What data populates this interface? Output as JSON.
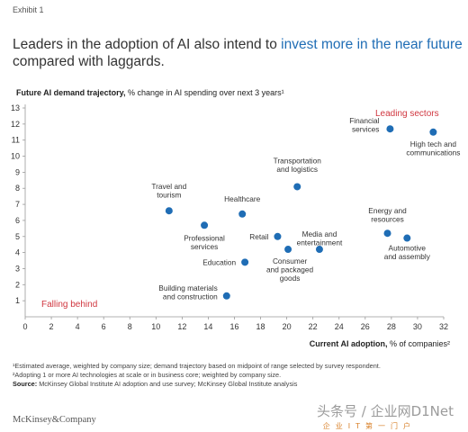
{
  "exhibit": "Exhibit 1",
  "headline": {
    "part1": "Leaders in the adoption of AI also intend to ",
    "highlight": "invest more in the near future",
    "part2": " compared with laggards."
  },
  "colors": {
    "dot": "#1f6db5",
    "accent_red": "#d0363f",
    "axis": "#999999"
  },
  "chart_data": {
    "type": "scatter",
    "ylabel_bold": "Future AI demand trajectory,",
    "ylabel_rest": " % change in AI spending over next 3 years¹",
    "xlabel_bold": "Current AI adoption,",
    "xlabel_rest": " % of companies²",
    "xlim": [
      0,
      32
    ],
    "ylim": [
      0,
      13
    ],
    "xticks": [
      "0",
      "2",
      "4",
      "6",
      "8",
      "10",
      "12",
      "14",
      "16",
      "18",
      "20",
      "22",
      "24",
      "26",
      "28",
      "30",
      "32"
    ],
    "yticks": [
      "1",
      "2",
      "3",
      "4",
      "5",
      "6",
      "7",
      "8",
      "9",
      "10",
      "11",
      "12",
      "13"
    ],
    "annotations": {
      "leading": "Leading sectors",
      "falling": "Falling behind"
    },
    "points": [
      {
        "label": [
          "Financial",
          "services"
        ],
        "x": 27.9,
        "y": 11.7
      },
      {
        "label": [
          "High tech and",
          "communications"
        ],
        "x": 31.2,
        "y": 11.5
      },
      {
        "label": [
          "Transportation",
          "and logistics"
        ],
        "x": 20.8,
        "y": 8.1
      },
      {
        "label": [
          "Travel and",
          "tourism"
        ],
        "x": 11.0,
        "y": 6.6
      },
      {
        "label": [
          "Healthcare"
        ],
        "x": 16.6,
        "y": 6.4
      },
      {
        "label": [
          "Professional",
          "services"
        ],
        "x": 13.7,
        "y": 5.7
      },
      {
        "label": [
          "Retail"
        ],
        "x": 19.3,
        "y": 5.0
      },
      {
        "label": [
          "Media and",
          "entertainment"
        ],
        "x": 22.5,
        "y": 4.2
      },
      {
        "label": [
          "Consumer",
          "and packaged",
          "goods"
        ],
        "x": 20.1,
        "y": 4.2
      },
      {
        "label": [
          "Energy and",
          "resources"
        ],
        "x": 27.7,
        "y": 5.2
      },
      {
        "label": [
          "Automotive",
          "and assembly"
        ],
        "x": 29.2,
        "y": 4.9
      },
      {
        "label": [
          "Education"
        ],
        "x": 16.8,
        "y": 3.4
      },
      {
        "label": [
          "Building materials",
          "and construction"
        ],
        "x": 15.4,
        "y": 1.3
      }
    ]
  },
  "notes": {
    "n1": "¹Estimated average, weighted by company size; demand trajectory based on midpoint of range selected by survey respondent.",
    "n2": "²Adopting 1 or more AI technologies at scale or in business core; weighted by company size.",
    "source_label": "Source:",
    "source_text": " McKinsey Global Institute AI adoption and use survey; McKinsey Global Institute analysis"
  },
  "brand": "McKinsey&Company",
  "watermark": {
    "text": "头条号 / 企业网D1Net",
    "logo": "D1Net",
    "sub": "企业IT第一门户"
  }
}
